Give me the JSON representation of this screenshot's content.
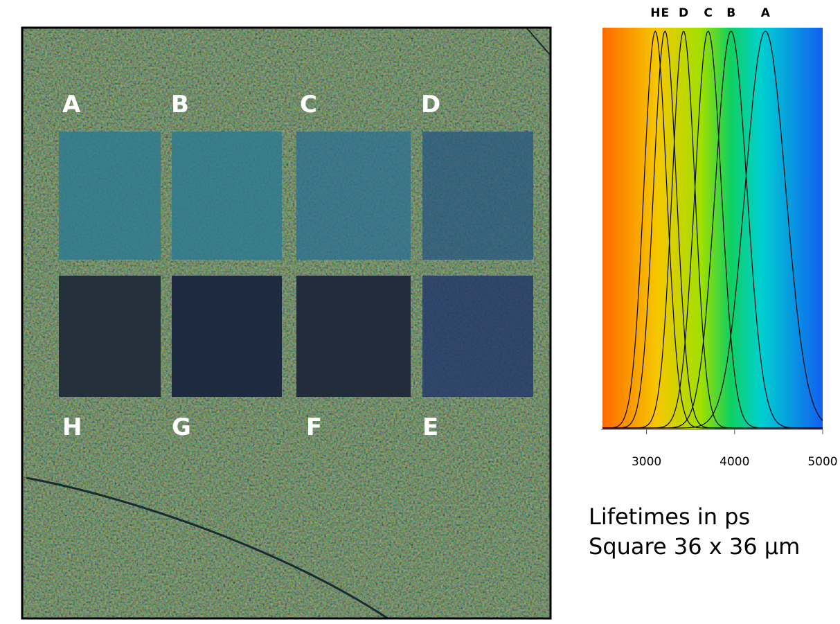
{
  "image": {
    "labels": [
      "A",
      "B",
      "C",
      "D",
      "H",
      "G",
      "F",
      "E"
    ]
  },
  "chart_data": {
    "type": "line",
    "xlim": [
      2500,
      5000
    ],
    "xticks": [
      3000,
      4000,
      5000
    ],
    "series": [
      {
        "name": "H",
        "peak": 3100,
        "sigma": 130
      },
      {
        "name": "E",
        "peak": 3210,
        "sigma": 130
      },
      {
        "name": "D",
        "peak": 3420,
        "sigma": 130
      },
      {
        "name": "C",
        "peak": 3700,
        "sigma": 150
      },
      {
        "name": "B",
        "peak": 3960,
        "sigma": 180
      },
      {
        "name": "A",
        "peak": 4350,
        "sigma": 230
      }
    ]
  },
  "caption": [
    "Lifetimes in ps",
    "Square 36 x 36 μm"
  ]
}
